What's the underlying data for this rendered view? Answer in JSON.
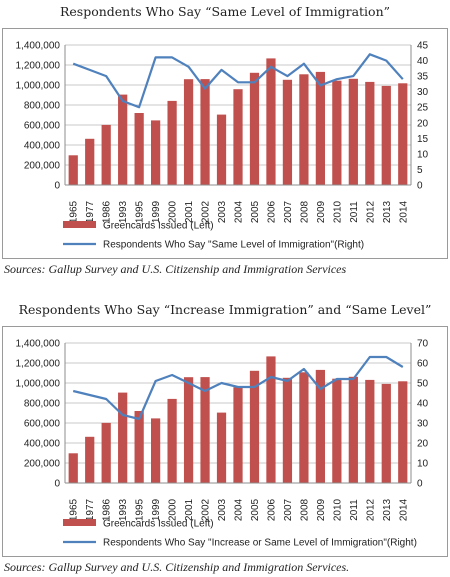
{
  "chart_data": [
    {
      "type": "bar+line",
      "title": "Respondents Who Say “Same Level of Immigration”",
      "source": "Sources: Gallup Survey and U.S. Citizenship and Immigration Services",
      "categories": [
        "1965",
        "1977",
        "1986",
        "1993",
        "1995",
        "1999",
        "2000",
        "2001",
        "2002",
        "2003",
        "2004",
        "2005",
        "2006",
        "2007",
        "2008",
        "2009",
        "2010",
        "2011",
        "2012",
        "2013",
        "2014"
      ],
      "bars": {
        "name": "Greencards Issued (Left)",
        "color": "#C0504D",
        "values": [
          297000,
          462000,
          601000,
          904000,
          720000,
          646000,
          841000,
          1058000,
          1059000,
          704000,
          958000,
          1122000,
          1266000,
          1052000,
          1107000,
          1131000,
          1043000,
          1062000,
          1031000,
          991000,
          1017000
        ]
      },
      "line": {
        "name": "Respondents Who Say \"Same Level of Immigration\"(Right)",
        "color": "#4F81BD",
        "values": [
          39,
          37,
          35,
          27,
          25,
          41,
          41,
          38,
          31,
          37,
          33,
          33,
          38,
          35,
          39,
          32,
          34,
          35,
          42,
          40,
          34
        ]
      },
      "y_left": {
        "min": 0,
        "max": 1400000,
        "step": 200000,
        "ticks": [
          "0",
          "200,000",
          "400,000",
          "600,000",
          "800,000",
          "1,000,000",
          "1,200,000",
          "1,400,000"
        ]
      },
      "y_right": {
        "min": 0,
        "max": 45,
        "step": 5,
        "ticks": [
          "0",
          "5",
          "10",
          "15",
          "20",
          "25",
          "30",
          "35",
          "40",
          "45"
        ]
      },
      "grid": true,
      "legend": "bottom"
    },
    {
      "type": "bar+line",
      "title": "Respondents Who Say “Increase Immigration” and “Same Level”",
      "source": "Sources: Gallup Survey and U.S. Citizenship and Immigration Services.",
      "categories": [
        "1965",
        "1977",
        "1986",
        "1993",
        "1995",
        "1999",
        "2000",
        "2001",
        "2002",
        "2003",
        "2004",
        "2005",
        "2006",
        "2007",
        "2008",
        "2009",
        "2010",
        "2011",
        "2012",
        "2013",
        "2014"
      ],
      "bars": {
        "name": "Greencards Issued (Left)",
        "color": "#C0504D",
        "values": [
          297000,
          462000,
          601000,
          904000,
          720000,
          646000,
          841000,
          1058000,
          1059000,
          704000,
          958000,
          1122000,
          1266000,
          1052000,
          1107000,
          1131000,
          1043000,
          1062000,
          1031000,
          991000,
          1017000
        ]
      },
      "line": {
        "name": "Respondents Who Say \"Increase or Same Level of Immigration\"(Right)",
        "color": "#4F81BD",
        "values": [
          46,
          44,
          42,
          34,
          32,
          51,
          54,
          50,
          46,
          50,
          48,
          48,
          53,
          51,
          57,
          47,
          52,
          52,
          63,
          63,
          58
        ]
      },
      "y_left": {
        "min": 0,
        "max": 1400000,
        "step": 200000,
        "ticks": [
          "0",
          "200,000",
          "400,000",
          "600,000",
          "800,000",
          "1,000,000",
          "1,200,000",
          "1,400,000"
        ]
      },
      "y_right": {
        "min": 0,
        "max": 70,
        "step": 10,
        "ticks": [
          "0",
          "10",
          "20",
          "30",
          "40",
          "50",
          "60",
          "70"
        ]
      },
      "grid": true,
      "legend": "bottom"
    }
  ]
}
